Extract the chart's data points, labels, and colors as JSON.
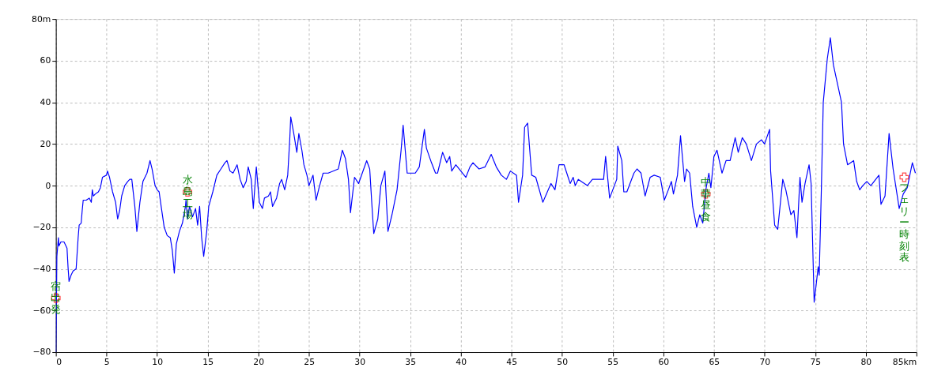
{
  "chart_data": {
    "type": "line",
    "x": [
      0,
      0.05,
      0.1,
      0.25,
      0.3,
      0.5,
      0.8,
      1.1,
      1.2,
      1.3,
      1.5,
      1.7,
      2.0,
      2.2,
      2.3,
      2.5,
      2.6,
      2.7,
      3.0,
      3.3,
      3.5,
      3.6,
      3.7,
      3.9,
      4.2,
      4.4,
      4.6,
      5.0,
      5.1,
      5.3,
      5.6,
      5.9,
      6.1,
      6.3,
      6.5,
      6.8,
      7.1,
      7.3,
      7.5,
      7.8,
      8.0,
      8.3,
      8.6,
      9.0,
      9.3,
      9.5,
      9.8,
      10.0,
      10.2,
      10.4,
      10.7,
      11.0,
      11.3,
      11.5,
      11.7,
      11.9,
      12.2,
      12.5,
      12.8,
      12.85,
      13.0,
      13.2,
      13.5,
      13.8,
      14.0,
      14.2,
      14.4,
      14.6,
      14.9,
      15.1,
      15.5,
      15.9,
      16.3,
      16.7,
      16.9,
      17.2,
      17.5,
      17.9,
      18.2,
      18.5,
      18.8,
      19.0,
      19.3,
      19.5,
      19.8,
      20.1,
      20.4,
      20.6,
      21.0,
      21.2,
      21.4,
      21.8,
      22.1,
      22.3,
      22.6,
      22.9,
      23.1,
      23.2,
      23.5,
      23.8,
      24.0,
      24.3,
      24.5,
      24.8,
      25.0,
      25.4,
      25.7,
      26.0,
      26.4,
      26.9,
      27.9,
      28.3,
      28.6,
      28.9,
      29.1,
      29.5,
      29.9,
      30.7,
      31.0,
      31.2,
      31.4,
      31.8,
      32.1,
      32.5,
      32.8,
      33.2,
      33.7,
      34.1,
      34.3,
      34.7,
      35.5,
      35.9,
      36.4,
      36.6,
      37.1,
      37.5,
      37.7,
      38.2,
      38.6,
      38.9,
      39.1,
      39.5,
      40.5,
      40.9,
      41.2,
      41.8,
      42.4,
      43.0,
      43.5,
      44.0,
      44.5,
      44.9,
      45.5,
      45.7,
      46.1,
      46.3,
      46.6,
      47.0,
      47.4,
      48.1,
      48.9,
      49.3,
      49.7,
      50.2,
      50.6,
      50.8,
      51.1,
      51.3,
      51.6,
      52.5,
      53.0,
      54.1,
      54.3,
      54.7,
      55.4,
      55.5,
      55.9,
      56.1,
      56.4,
      57.1,
      57.4,
      57.8,
      58.2,
      58.7,
      59.1,
      59.7,
      60.1,
      60.5,
      60.8,
      61.0,
      61.4,
      61.7,
      62.1,
      62.3,
      62.6,
      62.9,
      63.3,
      63.6,
      63.9,
      64.2,
      64.5,
      64.7,
      65.0,
      65.3,
      65.8,
      66.2,
      66.6,
      67.1,
      67.4,
      67.8,
      68.2,
      68.7,
      69.2,
      69.7,
      70.0,
      70.5,
      70.6,
      71.0,
      71.3,
      71.8,
      72.1,
      72.6,
      72.9,
      73.2,
      73.5,
      73.7,
      74.0,
      74.4,
      74.6,
      74.9,
      75.3,
      75.4,
      75.6,
      75.8,
      76.2,
      76.5,
      76.8,
      77.2,
      77.6,
      77.8,
      78.2,
      78.8,
      79.1,
      79.4,
      79.7,
      80.1,
      80.5,
      81.3,
      81.5,
      81.9,
      82.3,
      82.7,
      83.3,
      83.7,
      84.1,
      84.6,
      84.9
    ],
    "series": [
      {
        "color": "#0000ff",
        "values": [
          -80,
          -60,
          -34,
          -25,
          -29,
          -27,
          -27,
          -30,
          -39,
          -46,
          -43,
          -41,
          -40,
          -25,
          -19,
          -18,
          -12,
          -7,
          -7,
          -6,
          -8,
          -2,
          -5,
          -4,
          -3,
          -1,
          4,
          5,
          7,
          4,
          -3,
          -8,
          -16,
          -12,
          -5,
          0,
          2,
          3,
          3,
          -10,
          -22,
          -8,
          2,
          6,
          12,
          8,
          0,
          -2,
          -3,
          -10,
          -20,
          -24,
          -25,
          -31,
          -42,
          -28,
          -22,
          -18,
          -10,
          -7,
          -16,
          -10,
          -15,
          -11,
          -19,
          -10,
          -25,
          -34,
          -22,
          -10,
          -3,
          5,
          8,
          11,
          12,
          7,
          6,
          10,
          3,
          -1,
          2,
          9,
          3,
          -11,
          9,
          -8,
          -11,
          -6,
          -5,
          -3,
          -10,
          -6,
          1,
          3,
          -2,
          5,
          22,
          33,
          25,
          16,
          25,
          17,
          10,
          5,
          0,
          5,
          -7,
          -1,
          6,
          6,
          8,
          17,
          13,
          3,
          -13,
          4,
          1,
          12,
          8,
          -8,
          -23,
          -16,
          0,
          7,
          -22,
          -14,
          -2,
          17,
          29,
          6,
          6,
          9,
          27,
          18,
          11,
          6,
          6,
          16,
          11,
          14,
          7,
          10,
          4,
          9,
          11,
          8,
          9,
          15,
          9,
          5,
          3,
          7,
          5,
          -8,
          5,
          28,
          30,
          5,
          4,
          -8,
          1,
          -2,
          10,
          10,
          4,
          1,
          4,
          0,
          3,
          0,
          3,
          3,
          14,
          -6,
          3,
          19,
          12,
          -3,
          -3,
          6,
          8,
          6,
          -5,
          4,
          5,
          4,
          -7,
          -2,
          2,
          -4,
          5,
          24,
          2,
          8,
          6,
          -10,
          -20,
          -14,
          -18,
          -2,
          6,
          -1,
          14,
          17,
          6,
          12,
          12,
          23,
          16,
          23,
          20,
          12,
          20,
          22,
          20,
          27,
          7,
          -19,
          -21,
          3,
          -2,
          -14,
          -12,
          -25,
          4,
          -8,
          1,
          10,
          1,
          -56,
          -39,
          -43,
          -4,
          40,
          61,
          71,
          58,
          49,
          40,
          20,
          10,
          12,
          2,
          -2,
          0,
          2,
          0,
          5,
          -9,
          -5,
          25,
          8,
          -11,
          -4,
          -1,
          11,
          6
        ]
      }
    ],
    "xlim": [
      0,
      85
    ],
    "xticks": [
      0,
      5,
      10,
      15,
      20,
      25,
      30,
      35,
      40,
      45,
      50,
      55,
      60,
      65,
      70,
      75,
      80,
      {
        "value": 85,
        "label": "85km"
      }
    ],
    "ylim": [
      -80,
      80
    ],
    "yticks": [
      -80,
      -60,
      -40,
      -20,
      0,
      20,
      40,
      60,
      {
        "value": 80,
        "label": "80m"
      }
    ],
    "grid": true,
    "line_style": "solid",
    "annotations": [
      {
        "text": "宿出発",
        "x": 0,
        "y": -54
      },
      {
        "text": "水島工場",
        "x": 13,
        "y": -3
      },
      {
        "text": "中華昼食",
        "x": 64.2,
        "y": -4
      },
      {
        "text": "フェリー時刻表",
        "x": 83.8,
        "y": 4
      }
    ]
  }
}
